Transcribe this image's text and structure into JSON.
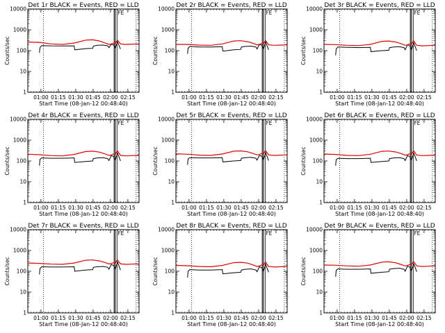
{
  "chart_data": {
    "type": "line",
    "yscale": "log",
    "ylim": [
      1,
      10000
    ],
    "x_range_minutes": [
      0,
      96
    ],
    "x_unit": "minutes since 00:48:40",
    "ylabel": "Counts/sec",
    "xlabel": "Start Time (08-Jan-12 00:48:40)",
    "x_ticks": [
      {
        "label": "01:00",
        "t": 11.33
      },
      {
        "label": "01:15",
        "t": 26.33
      },
      {
        "label": "01:30",
        "t": 41.33
      },
      {
        "label": "01:45",
        "t": 56.33
      },
      {
        "label": "02:00",
        "t": 71.33
      },
      {
        "label": "02:15",
        "t": 86.33
      }
    ],
    "y_ticks": [
      {
        "label": "1",
        "v": 1
      },
      {
        "label": "10",
        "v": 10
      },
      {
        "label": "100",
        "v": 100
      },
      {
        "label": "1000",
        "v": 1000
      },
      {
        "label": "10000",
        "v": 10000
      }
    ],
    "legend": "in title: BLACK = Events, RED = LLD",
    "series_colors": {
      "events": "#000000",
      "lld": "#dd0000"
    },
    "night_marks_minutes": [
      13.5,
      93.5
    ],
    "saa_marks_minutes": [
      74.5,
      75.5
    ],
    "flare_flag": {
      "label": "FE",
      "t": 77
    },
    "panels": [
      {
        "title": "Det 1r BLACK = Events, RED = LLD",
        "events": {
          "t": [
            10,
            10.5,
            12,
            20,
            30,
            40,
            40.5,
            50,
            56,
            56.5,
            60,
            65,
            69,
            70,
            72,
            74,
            75.5,
            76.5,
            77.5,
            79,
            80
          ],
          "v": [
            80,
            140,
            175,
            170,
            168,
            170,
            110,
            125,
            130,
            165,
            180,
            185,
            170,
            140,
            200,
            190,
            130,
            190,
            260,
            160,
            120
          ]
        },
        "lld": {
          "t": [
            0,
            10,
            20,
            30,
            40,
            50,
            56,
            62,
            66,
            70,
            72,
            74,
            75.5,
            76.5,
            77.5,
            80,
            85,
            90,
            96
          ],
          "v": [
            260,
            250,
            210,
            200,
            230,
            320,
            330,
            290,
            240,
            200,
            210,
            230,
            210,
            280,
            310,
            210,
            200,
            205,
            210
          ]
        }
      },
      {
        "title": "Det 2r BLACK = Events, RED = LLD",
        "events": {
          "t": [
            10,
            10.5,
            12,
            20,
            30,
            40,
            40.5,
            50,
            56,
            56.5,
            60,
            65,
            69,
            70,
            72,
            74,
            75.5,
            76.5,
            77.5,
            79,
            80
          ],
          "v": [
            70,
            130,
            160,
            150,
            150,
            155,
            95,
            110,
            115,
            150,
            160,
            165,
            150,
            120,
            200,
            180,
            120,
            180,
            250,
            150,
            110
          ]
        },
        "lld": {
          "t": [
            0,
            10,
            20,
            30,
            40,
            50,
            56,
            62,
            66,
            70,
            72,
            74,
            75.5,
            76.5,
            77.5,
            80,
            85,
            90,
            96
          ],
          "v": [
            200,
            200,
            185,
            180,
            210,
            290,
            300,
            270,
            230,
            190,
            200,
            220,
            200,
            270,
            300,
            190,
            180,
            185,
            190
          ]
        }
      },
      {
        "title": "Det 3r BLACK = Events, RED = LLD",
        "events": {
          "t": [
            10,
            10.5,
            12,
            20,
            30,
            40,
            40.5,
            50,
            56,
            56.5,
            60,
            65,
            69,
            70,
            72,
            74,
            75.5,
            76.5,
            77.5,
            79,
            80
          ],
          "v": [
            60,
            120,
            150,
            145,
            140,
            145,
            90,
            100,
            105,
            140,
            150,
            155,
            140,
            110,
            190,
            170,
            110,
            170,
            230,
            140,
            100
          ]
        },
        "lld": {
          "t": [
            0,
            10,
            20,
            30,
            40,
            50,
            56,
            62,
            66,
            70,
            72,
            74,
            75.5,
            76.5,
            77.5,
            80,
            85,
            90,
            96
          ],
          "v": [
            200,
            195,
            180,
            175,
            200,
            280,
            290,
            260,
            220,
            180,
            190,
            210,
            190,
            260,
            290,
            180,
            170,
            175,
            180
          ]
        }
      },
      {
        "title": "Det 4r BLACK = Events, RED = LLD",
        "events": {
          "t": [
            10,
            10.5,
            12,
            20,
            30,
            40,
            40.5,
            50,
            56,
            56.5,
            60,
            65,
            69,
            70,
            72,
            74,
            75.5,
            76.5,
            77.5,
            79,
            80
          ],
          "v": [
            60,
            120,
            140,
            135,
            135,
            140,
            85,
            95,
            100,
            130,
            140,
            145,
            130,
            105,
            180,
            165,
            110,
            165,
            230,
            140,
            100
          ]
        },
        "lld": {
          "t": [
            0,
            10,
            20,
            30,
            40,
            50,
            56,
            62,
            66,
            70,
            72,
            74,
            75.5,
            76.5,
            77.5,
            80,
            85,
            90,
            96
          ],
          "v": [
            210,
            200,
            180,
            175,
            205,
            285,
            295,
            265,
            225,
            185,
            195,
            215,
            195,
            265,
            295,
            185,
            175,
            180,
            185
          ]
        }
      },
      {
        "title": "Det 5r BLACK = Events, RED = LLD",
        "events": {
          "t": [
            10,
            10.5,
            12,
            20,
            30,
            40,
            40.5,
            50,
            56,
            56.5,
            60,
            65,
            69,
            70,
            72,
            74,
            75.5,
            76.5,
            77.5,
            79,
            80
          ],
          "v": [
            65,
            125,
            145,
            140,
            140,
            145,
            90,
            100,
            105,
            135,
            145,
            150,
            135,
            110,
            185,
            170,
            115,
            170,
            240,
            145,
            105
          ]
        },
        "lld": {
          "t": [
            0,
            10,
            20,
            30,
            40,
            50,
            56,
            62,
            66,
            70,
            72,
            74,
            75.5,
            76.5,
            77.5,
            80,
            85,
            90,
            96
          ],
          "v": [
            220,
            210,
            190,
            185,
            215,
            295,
            305,
            275,
            235,
            195,
            205,
            225,
            205,
            275,
            305,
            195,
            185,
            190,
            195
          ]
        }
      },
      {
        "title": "Det 6r BLACK = Events, RED = LLD",
        "events": {
          "t": [
            10,
            10.5,
            12,
            20,
            30,
            40,
            40.5,
            50,
            56,
            56.5,
            60,
            65,
            69,
            70,
            72,
            74,
            75.5,
            76.5,
            77.5,
            79,
            80
          ],
          "v": [
            60,
            115,
            135,
            130,
            130,
            135,
            85,
            95,
            100,
            130,
            140,
            145,
            130,
            105,
            180,
            165,
            110,
            165,
            230,
            140,
            100
          ]
        },
        "lld": {
          "t": [
            0,
            10,
            20,
            30,
            40,
            50,
            56,
            62,
            66,
            70,
            72,
            74,
            75.5,
            76.5,
            77.5,
            80,
            85,
            90,
            96
          ],
          "v": [
            215,
            205,
            185,
            180,
            210,
            290,
            300,
            270,
            230,
            190,
            200,
            220,
            200,
            270,
            300,
            190,
            180,
            185,
            190
          ]
        }
      },
      {
        "title": "Det 7r BLACK = Events, RED = LLD",
        "events": {
          "t": [
            10,
            10.5,
            12,
            20,
            30,
            40,
            40.5,
            50,
            56,
            56.5,
            60,
            65,
            69,
            70,
            72,
            74,
            75.5,
            76.5,
            77.5,
            79,
            80
          ],
          "v": [
            70,
            135,
            165,
            160,
            160,
            165,
            100,
            115,
            120,
            155,
            165,
            170,
            155,
            125,
            210,
            190,
            125,
            190,
            270,
            160,
            115
          ]
        },
        "lld": {
          "t": [
            0,
            10,
            20,
            30,
            40,
            50,
            56,
            62,
            66,
            70,
            72,
            74,
            75.5,
            76.5,
            77.5,
            80,
            85,
            90,
            96
          ],
          "v": [
            250,
            240,
            220,
            215,
            250,
            340,
            350,
            315,
            270,
            225,
            235,
            260,
            235,
            315,
            345,
            225,
            215,
            220,
            225
          ]
        }
      },
      {
        "title": "Det 8r BLACK = Events, RED = LLD",
        "events": {
          "t": [
            10,
            10.5,
            12,
            20,
            30,
            40,
            40.5,
            50,
            56,
            56.5,
            60,
            65,
            69,
            70,
            72,
            74,
            75.5,
            76.5,
            77.5,
            79,
            80
          ],
          "v": [
            50,
            100,
            120,
            115,
            115,
            120,
            75,
            85,
            90,
            115,
            125,
            130,
            115,
            95,
            165,
            150,
            100,
            150,
            210,
            125,
            90
          ]
        },
        "lld": {
          "t": [
            0,
            10,
            20,
            30,
            40,
            50,
            56,
            62,
            66,
            70,
            72,
            74,
            75.5,
            76.5,
            77.5,
            80,
            85,
            90,
            96
          ],
          "v": [
            190,
            185,
            170,
            165,
            190,
            260,
            270,
            245,
            205,
            170,
            180,
            200,
            180,
            245,
            270,
            170,
            160,
            165,
            170
          ]
        }
      },
      {
        "title": "Det 9r BLACK = Events, RED = LLD",
        "events": {
          "t": [
            10,
            10.5,
            12,
            20,
            30,
            40,
            40.5,
            50,
            56,
            56.5,
            60,
            65,
            69,
            70,
            72,
            74,
            75.5,
            76.5,
            77.5,
            79,
            80
          ],
          "v": [
            55,
            110,
            130,
            125,
            125,
            130,
            80,
            90,
            95,
            125,
            135,
            140,
            125,
            100,
            175,
            160,
            105,
            160,
            220,
            135,
            95
          ]
        },
        "lld": {
          "t": [
            0,
            10,
            20,
            30,
            40,
            50,
            56,
            62,
            66,
            70,
            72,
            74,
            75.5,
            76.5,
            77.5,
            80,
            85,
            90,
            96
          ],
          "v": [
            200,
            195,
            180,
            175,
            200,
            275,
            285,
            255,
            215,
            180,
            190,
            210,
            190,
            255,
            285,
            180,
            170,
            175,
            180
          ]
        }
      }
    ]
  }
}
